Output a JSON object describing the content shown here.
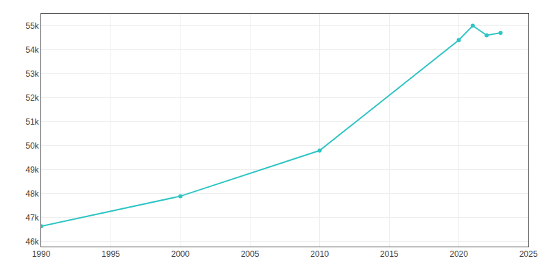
{
  "chart_data": {
    "type": "line",
    "x": [
      1990,
      2000,
      2010,
      2020,
      2021,
      2022,
      2023
    ],
    "values": [
      46650,
      47900,
      49800,
      54400,
      55000,
      54600,
      54700
    ],
    "color": "#2EC4C4",
    "marker": "circle",
    "line_style": "solid",
    "xlim": [
      1990,
      2025
    ],
    "ylim": [
      45800,
      55500
    ],
    "xticks": [
      1990,
      1995,
      2000,
      2005,
      2010,
      2015,
      2020,
      2025
    ],
    "yticks": [
      {
        "value": 46000,
        "label": "46k"
      },
      {
        "value": 47000,
        "label": "47k"
      },
      {
        "value": 48000,
        "label": "48k"
      },
      {
        "value": 49000,
        "label": "49k"
      },
      {
        "value": 50000,
        "label": "50k"
      },
      {
        "value": 51000,
        "label": "51k"
      },
      {
        "value": 52000,
        "label": "52k"
      },
      {
        "value": 53000,
        "label": "53k"
      },
      {
        "value": 54000,
        "label": "54k"
      },
      {
        "value": 55000,
        "label": "55k"
      }
    ],
    "grid": true
  }
}
